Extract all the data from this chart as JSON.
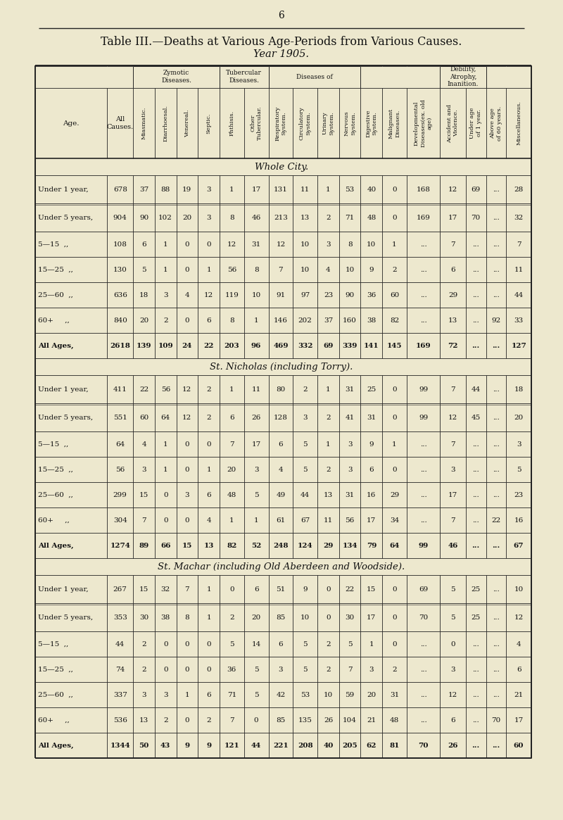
{
  "title": "Table III.—Deaths at Various Age-Periods from Various Causes.",
  "subtitle": "Year 1905.",
  "page_num": "6",
  "bg_color": "#ede8ce",
  "col_headers_rotated": [
    "Miasmatic.",
    "Diarrhoesal.",
    "Venereal.",
    "Septic.",
    "Phthisis.",
    "Other\nTubercular.",
    "Respiratory\nSystem.",
    "Circulatory\nSystem.",
    "Urinary\nSystem.",
    "Nervous\nSystem.",
    "Digestive\nSystem.",
    "Malignant\nDiseases.",
    "Developmental\nDiseases(ex. old\nage)",
    "Accident and\nViolence.",
    "Under age\nof 1 year.",
    "Above age\nof 60 years.",
    "Miscellaneous."
  ],
  "sections": [
    {
      "title": "Whole City.",
      "rows": [
        [
          "Under 1 year,",
          678,
          37,
          88,
          19,
          3,
          1,
          17,
          131,
          11,
          1,
          53,
          40,
          0,
          168,
          12,
          69,
          "...",
          28
        ],
        [
          "Under 5 years,",
          904,
          90,
          102,
          20,
          3,
          8,
          46,
          213,
          13,
          2,
          71,
          48,
          0,
          169,
          17,
          70,
          "...",
          32
        ],
        [
          "5—15  ,,",
          108,
          6,
          1,
          0,
          0,
          12,
          31,
          12,
          10,
          3,
          8,
          10,
          1,
          "...",
          7,
          "...",
          "...",
          7
        ],
        [
          "15—25  ,,",
          130,
          5,
          1,
          0,
          1,
          56,
          8,
          7,
          10,
          4,
          10,
          9,
          2,
          "...",
          6,
          "...",
          "...",
          11
        ],
        [
          "25—60  ,,",
          636,
          18,
          3,
          4,
          12,
          119,
          10,
          91,
          97,
          23,
          90,
          36,
          60,
          "...",
          29,
          "...",
          "...",
          44
        ],
        [
          "60+     ,,",
          840,
          20,
          2,
          0,
          6,
          8,
          1,
          146,
          202,
          37,
          160,
          38,
          82,
          "...",
          13,
          "...",
          92,
          33
        ],
        [
          "All Ages,",
          2618,
          139,
          109,
          24,
          22,
          203,
          96,
          469,
          332,
          69,
          339,
          141,
          145,
          169,
          72,
          "...",
          "...",
          127
        ]
      ]
    },
    {
      "title": "St. Nicholas (including Torry).",
      "rows": [
        [
          "Under 1 year,",
          411,
          22,
          56,
          12,
          2,
          1,
          11,
          80,
          2,
          1,
          31,
          25,
          0,
          99,
          7,
          44,
          "...",
          18
        ],
        [
          "Under 5 years,",
          551,
          60,
          64,
          12,
          2,
          6,
          26,
          128,
          3,
          2,
          41,
          31,
          0,
          99,
          12,
          45,
          "...",
          20
        ],
        [
          "5—15  ,,",
          64,
          4,
          1,
          0,
          0,
          7,
          17,
          6,
          5,
          1,
          3,
          9,
          1,
          "...",
          7,
          "...",
          "...",
          3
        ],
        [
          "15—25  ,,",
          56,
          3,
          1,
          0,
          1,
          20,
          3,
          4,
          5,
          2,
          3,
          6,
          0,
          "...",
          3,
          "...",
          "...",
          5
        ],
        [
          "25—60  ,,",
          299,
          15,
          0,
          3,
          6,
          48,
          5,
          49,
          44,
          13,
          31,
          16,
          29,
          "...",
          17,
          "...",
          "...",
          23
        ],
        [
          "60+     ,,",
          304,
          7,
          0,
          0,
          4,
          1,
          1,
          61,
          67,
          11,
          56,
          17,
          34,
          "...",
          7,
          "...",
          22,
          16
        ],
        [
          "All Ages,",
          1274,
          89,
          66,
          15,
          13,
          82,
          52,
          248,
          124,
          29,
          134,
          79,
          64,
          99,
          46,
          "...",
          "...",
          67
        ]
      ]
    },
    {
      "title": "St. Machar (including Old Aberdeen and Woodside).",
      "rows": [
        [
          "Under 1 year,",
          267,
          15,
          32,
          7,
          1,
          0,
          6,
          51,
          9,
          0,
          22,
          15,
          0,
          69,
          5,
          25,
          "...",
          10
        ],
        [
          "Under 5 years,",
          353,
          30,
          38,
          8,
          1,
          2,
          20,
          85,
          10,
          0,
          30,
          17,
          0,
          70,
          5,
          25,
          "...",
          12
        ],
        [
          "5—15  ,,",
          44,
          2,
          0,
          0,
          0,
          5,
          14,
          6,
          5,
          2,
          5,
          1,
          0,
          "...",
          0,
          "...",
          "...",
          4
        ],
        [
          "15—25  ,,",
          74,
          2,
          0,
          0,
          0,
          36,
          5,
          3,
          5,
          2,
          7,
          3,
          2,
          "...",
          3,
          "...",
          "...",
          6
        ],
        [
          "25—60  ,,",
          337,
          3,
          3,
          1,
          6,
          71,
          5,
          42,
          53,
          10,
          59,
          20,
          31,
          "...",
          12,
          "...",
          "...",
          21
        ],
        [
          "60+     ,,",
          536,
          13,
          2,
          0,
          2,
          7,
          0,
          85,
          135,
          26,
          104,
          21,
          48,
          "...",
          6,
          "...",
          70,
          17
        ],
        [
          "All Ages,",
          1344,
          50,
          43,
          9,
          9,
          121,
          44,
          221,
          208,
          40,
          205,
          62,
          81,
          70,
          26,
          "...",
          "...",
          60
        ]
      ]
    }
  ]
}
